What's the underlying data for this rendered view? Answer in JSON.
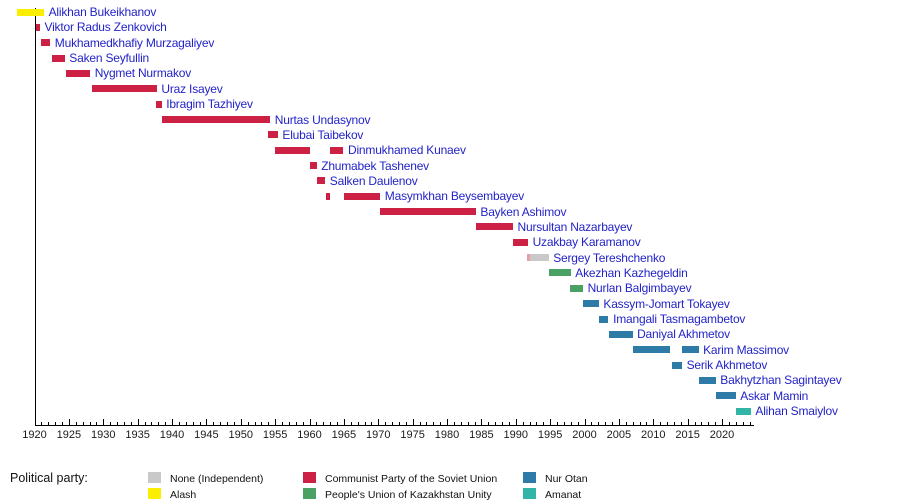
{
  "chart_data": {
    "type": "bar",
    "variant": "gantt-timeline",
    "orientation": "horizontal",
    "grid": false,
    "x_axis": {
      "origin_year": 1920,
      "axis_start_year": 1920,
      "axis_end_year": 2024.5,
      "minor_step": 1,
      "major_step": 5,
      "tick_labels": [
        "1920",
        "1925",
        "1930",
        "1935",
        "1940",
        "1945",
        "1950",
        "1955",
        "1960",
        "1965",
        "1970",
        "1975",
        "1980",
        "1985",
        "1990",
        "1995",
        "2000",
        "2005",
        "2010",
        "2015",
        "2020"
      ]
    },
    "legend": {
      "title": "Political party:",
      "position": "bottom",
      "items": [
        {
          "key": "none",
          "label": "None (Independent)",
          "color": "#c9c9c9"
        },
        {
          "key": "alash",
          "label": "Alash",
          "color": "#fcee00"
        },
        {
          "key": "cpsu",
          "label": "Communist Party of the Soviet Union",
          "color": "#cc2144"
        },
        {
          "key": "puku",
          "label": "People's Union of Kazakhstan Unity",
          "color": "#4ba163"
        },
        {
          "key": "nur_otan",
          "label": "Nur Otan",
          "color": "#2e7ba8"
        },
        {
          "key": "amanat",
          "label": "Amanat",
          "color": "#32b4a6"
        }
      ]
    },
    "people": [
      {
        "name": "Alikhan Bukeikhanov",
        "party": "alash",
        "segments": [
          {
            "from": 1917.4,
            "to": 1921.4
          }
        ]
      },
      {
        "name": "Viktor Radus Zenkovich",
        "party": "cpsu",
        "segments": [
          {
            "from": 1920.2,
            "to": 1920.8
          }
        ]
      },
      {
        "name": "Mukhamedkhafiy Murzagaliyev",
        "party": "cpsu",
        "segments": [
          {
            "from": 1921.0,
            "to": 1922.3
          }
        ]
      },
      {
        "name": "Saken Seyfullin",
        "party": "cpsu",
        "segments": [
          {
            "from": 1922.5,
            "to": 1924.4
          }
        ]
      },
      {
        "name": "Nygmet Nurmakov",
        "party": "cpsu",
        "segments": [
          {
            "from": 1924.6,
            "to": 1928.1
          }
        ]
      },
      {
        "name": "Uraz Isayev",
        "party": "cpsu",
        "segments": [
          {
            "from": 1928.4,
            "to": 1937.8
          }
        ]
      },
      {
        "name": "Ibragim Tazhiyev",
        "party": "cpsu",
        "segments": [
          {
            "from": 1937.7,
            "to": 1938.5
          }
        ]
      },
      {
        "name": "Nurtas Undasynov",
        "party": "cpsu",
        "segments": [
          {
            "from": 1938.5,
            "to": 1954.3
          }
        ]
      },
      {
        "name": "Elubai Taibekov",
        "party": "cpsu",
        "segments": [
          {
            "from": 1954.0,
            "to": 1955.4
          }
        ]
      },
      {
        "name": "Dinmukhamed Kunaev",
        "party": "cpsu",
        "segments": [
          {
            "from": 1955.0,
            "to": 1960.05
          },
          {
            "from": 1963.0,
            "to": 1964.95
          }
        ]
      },
      {
        "name": "Zhumabek Tashenev",
        "party": "cpsu",
        "segments": [
          {
            "from": 1960.1,
            "to": 1961.05
          }
        ]
      },
      {
        "name": "Salken Daulenov",
        "party": "cpsu",
        "segments": [
          {
            "from": 1961.1,
            "to": 1962.3
          }
        ]
      },
      {
        "name": "Masymkhan Beysembayev",
        "party": "cpsu",
        "segments": [
          {
            "from": 1962.35,
            "to": 1963.0
          },
          {
            "from": 1964.95,
            "to": 1970.3
          }
        ]
      },
      {
        "name": "Bayken Ashimov",
        "party": "cpsu",
        "segments": [
          {
            "from": 1970.3,
            "to": 1984.2
          }
        ]
      },
      {
        "name": "Nursultan Nazarbayev",
        "party": "cpsu",
        "segments": [
          {
            "from": 1984.2,
            "to": 1989.6
          }
        ]
      },
      {
        "name": "Uzakbay Karamanov",
        "party": "cpsu",
        "segments": [
          {
            "from": 1989.6,
            "to": 1991.8
          }
        ]
      },
      {
        "name": "Sergey Tereshchenko",
        "party": "none",
        "segments": [
          {
            "from": 1991.7,
            "to": 1992.05,
            "color": "#e8a0a6"
          },
          {
            "from": 1992.05,
            "to": 1994.8
          }
        ]
      },
      {
        "name": "Akezhan Kazhegeldin",
        "party": "puku",
        "segments": [
          {
            "from": 1994.8,
            "to": 1998.0
          }
        ]
      },
      {
        "name": "Nurlan Balgimbayev",
        "party": "puku",
        "segments": [
          {
            "from": 1997.9,
            "to": 1999.8
          }
        ]
      },
      {
        "name": "Kassym-Jomart Tokayev",
        "party": "nur_otan",
        "segments": [
          {
            "from": 1999.8,
            "to": 2002.1
          }
        ]
      },
      {
        "name": "Imangali Tasmagambetov",
        "party": "nur_otan",
        "segments": [
          {
            "from": 2002.1,
            "to": 2003.5
          }
        ]
      },
      {
        "name": "Daniyal Akhmetov",
        "party": "nur_otan",
        "segments": [
          {
            "from": 2003.5,
            "to": 2007.0
          }
        ]
      },
      {
        "name": "Karim Massimov",
        "party": "nur_otan",
        "segments": [
          {
            "from": 2007.0,
            "to": 2012.5
          },
          {
            "from": 2014.2,
            "to": 2016.6
          }
        ]
      },
      {
        "name": "Serik Akhmetov",
        "party": "nur_otan",
        "segments": [
          {
            "from": 2012.7,
            "to": 2014.2
          }
        ]
      },
      {
        "name": "Bakhytzhan Sagintayev",
        "party": "nur_otan",
        "segments": [
          {
            "from": 2016.7,
            "to": 2019.1
          }
        ]
      },
      {
        "name": "Askar Mamin",
        "party": "nur_otan",
        "segments": [
          {
            "from": 2019.1,
            "to": 2022.0
          }
        ]
      },
      {
        "name": "Alihan Smaiylov",
        "party": "amanat",
        "segments": [
          {
            "from": 2022.0,
            "to": 2024.2
          }
        ]
      }
    ]
  }
}
